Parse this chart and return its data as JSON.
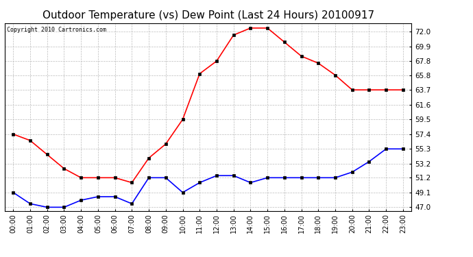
{
  "title": "Outdoor Temperature (vs) Dew Point (Last 24 Hours) 20100917",
  "copyright": "Copyright 2010 Cartronics.com",
  "x_labels": [
    "00:00",
    "01:00",
    "02:00",
    "03:00",
    "04:00",
    "05:00",
    "06:00",
    "07:00",
    "08:00",
    "09:00",
    "10:00",
    "11:00",
    "12:00",
    "13:00",
    "14:00",
    "15:00",
    "16:00",
    "17:00",
    "18:00",
    "19:00",
    "20:00",
    "21:00",
    "22:00",
    "23:00"
  ],
  "temp_data": [
    57.4,
    56.5,
    54.5,
    52.5,
    51.2,
    51.2,
    51.2,
    50.5,
    54.0,
    56.0,
    59.5,
    66.0,
    67.8,
    71.5,
    72.5,
    72.5,
    70.5,
    68.5,
    67.5,
    65.8,
    63.7,
    63.7,
    63.7,
    63.7
  ],
  "dew_data": [
    49.1,
    47.5,
    47.0,
    47.0,
    48.0,
    48.5,
    48.5,
    47.5,
    51.2,
    51.2,
    49.1,
    50.5,
    51.5,
    51.5,
    50.5,
    51.2,
    51.2,
    51.2,
    51.2,
    51.2,
    52.0,
    53.5,
    55.3,
    55.3
  ],
  "temp_color": "#ff0000",
  "dew_color": "#0000ff",
  "bg_color": "#ffffff",
  "grid_color": "#bbbbbb",
  "yticks": [
    47.0,
    49.1,
    51.2,
    53.2,
    55.3,
    57.4,
    59.5,
    61.6,
    63.7,
    65.8,
    67.8,
    69.9,
    72.0
  ],
  "ylim": [
    46.5,
    73.2
  ],
  "title_fontsize": 11,
  "copyright_fontsize": 6,
  "axis_fontsize": 7.5
}
